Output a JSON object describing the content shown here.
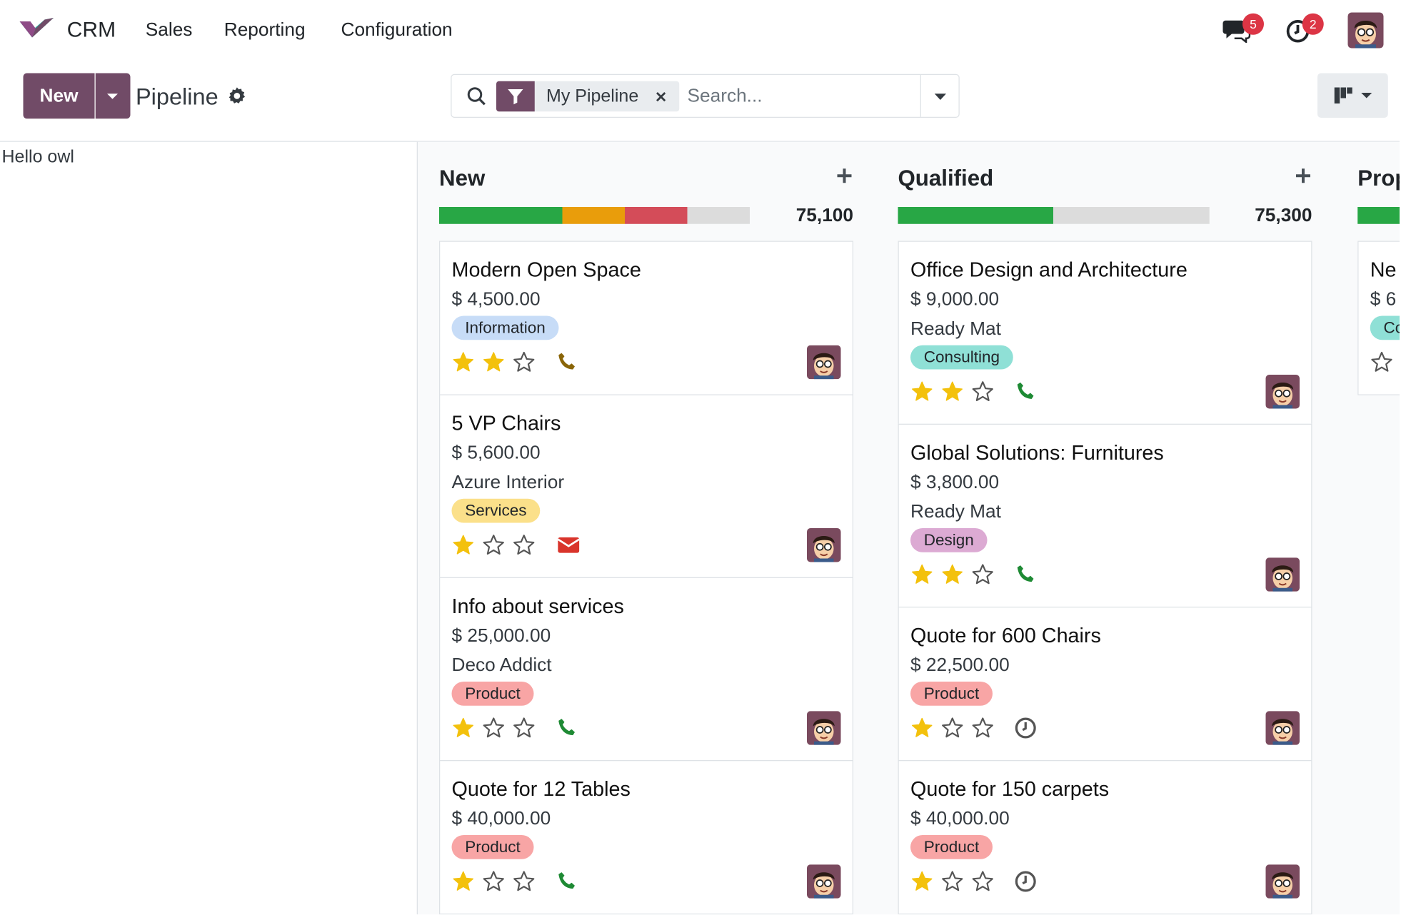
{
  "navbar": {
    "app_name": "CRM",
    "menu": [
      "Sales",
      "Reporting",
      "Configuration"
    ],
    "message_count": 5,
    "activity_count": 2
  },
  "control_panel": {
    "new_button": "New",
    "title": "Pipeline",
    "filter_facet": "My Pipeline",
    "search_placeholder": "Search..."
  },
  "sidebar": {
    "text": "Hello owl"
  },
  "columns": [
    {
      "title": "New",
      "total": "75,100",
      "cards": [
        {
          "title": "Modern Open Space",
          "amount": "$ 4,500.00",
          "tag": "Information"
        },
        {
          "title": "5 VP Chairs",
          "amount": "$ 5,600.00",
          "company": "Azure Interior",
          "tag": "Services"
        },
        {
          "title": "Info about services",
          "amount": "$ 25,000.00",
          "company": "Deco Addict",
          "tag": "Product"
        },
        {
          "title": "Quote for 12 Tables",
          "amount": "$ 40,000.00",
          "tag": "Product"
        }
      ]
    },
    {
      "title": "Qualified",
      "total": "75,300",
      "cards": [
        {
          "title": "Office Design and Architecture",
          "amount": "$ 9,000.00",
          "company": "Ready Mat",
          "tag": "Consulting"
        },
        {
          "title": "Global Solutions: Furnitures",
          "amount": "$ 3,800.00",
          "company": "Ready Mat",
          "tag": "Design"
        },
        {
          "title": "Quote for 600 Chairs",
          "amount": "$ 22,500.00",
          "tag": "Product"
        },
        {
          "title": "Quote for 150 carpets",
          "amount": "$ 40,000.00",
          "tag": "Product"
        }
      ]
    },
    {
      "title": "Prop",
      "cards": [
        {
          "title": "Ne",
          "amount": "$ 6",
          "tag": "Co"
        }
      ]
    }
  ]
}
